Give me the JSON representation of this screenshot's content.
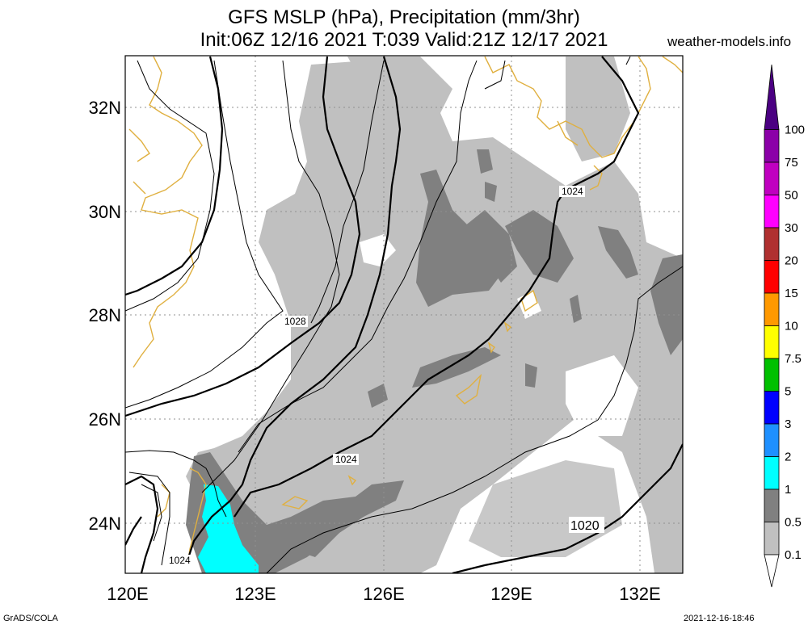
{
  "title": {
    "line1": "GFS MSLP (hPa), Precipitation (mm/3hr)",
    "line2": "Init:06Z 12/16 2021 T:039 Valid:21Z 12/17 2021",
    "site": "weather-models.info"
  },
  "footer": {
    "left": "GrADS/COLA",
    "right": "2021-12-16-18:46"
  },
  "map": {
    "lat_labels": [
      "32N",
      "30N",
      "28N",
      "26N",
      "24N"
    ],
    "lon_labels": [
      "120E",
      "123E",
      "126E",
      "129E",
      "132E"
    ],
    "isobar_labels": [
      "1028",
      "1024",
      "1024",
      "1024",
      "1020"
    ],
    "colors": {
      "light": "#c0c0c0",
      "dark": "#808080",
      "cyan": "#00ffff",
      "coast": "#e0b040"
    }
  },
  "colorbar": {
    "labels": [
      "100",
      "75",
      "50",
      "30",
      "20",
      "15",
      "10",
      "7.5",
      "5",
      "3",
      "2",
      "1",
      "0.5",
      "0.1"
    ],
    "colors": [
      "#4b0082",
      "#8b00a8",
      "#c000c0",
      "#ff00ff",
      "#b03030",
      "#ff0000",
      "#ff9900",
      "#ffff00",
      "#00c000",
      "#0000ff",
      "#1e90ff",
      "#00ffff",
      "#808080",
      "#c0c0c0"
    ]
  }
}
